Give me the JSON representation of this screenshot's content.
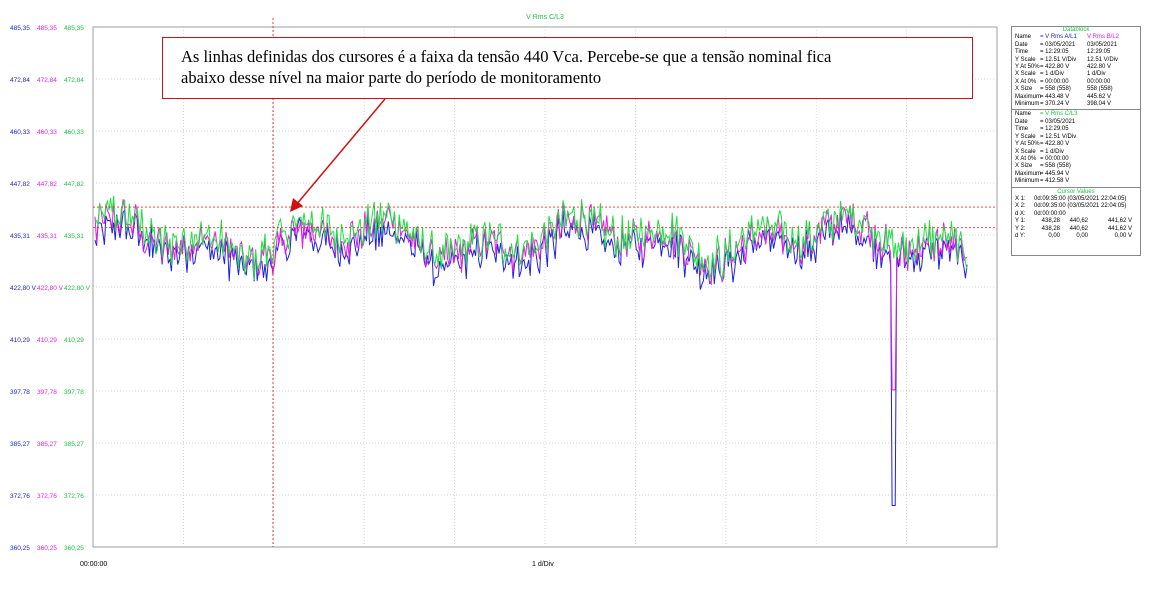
{
  "callout": {
    "line1": "As linhas definidas dos cursores é a faixa da tensão 440 Vca. Percebe-se que a tensão nominal fica",
    "line2": "abaixo desse nível na maior parte do período de monitoramento"
  },
  "chart_data": {
    "type": "line",
    "title": "V Rms C/L3",
    "ylim": [
      360.25,
      485.35
    ],
    "y_ticks": [
      "485,35",
      "472,84",
      "460,33",
      "447,82",
      "435,31",
      "422,80 V",
      "410,29",
      "397,78",
      "385,27",
      "372,76",
      "360,25"
    ],
    "y_ticks_col2": [
      "485,35",
      "472,84",
      "460,33",
      "447,82",
      "435,31",
      "422,80 V",
      "410,29",
      "397,78",
      "385,27",
      "372,76",
      "360,25"
    ],
    "y_ticks_col3": [
      "485,35",
      "472,84",
      "460,33",
      "447,82",
      "435,31",
      "422,80 V",
      "410,29",
      "397,78",
      "385,27",
      "372,76",
      "360,25"
    ],
    "x_tick_start": "00:00:00",
    "x_scale_label": "1 d/Div",
    "series": [
      {
        "name": "V Rms A/L1",
        "color": "#2020e0",
        "min": 370.24,
        "max": 443.48
      },
      {
        "name": "V Rms B/L2",
        "color": "#e020e0",
        "min": 398.04,
        "max": 445.62
      },
      {
        "name": "V Rms C/L3",
        "color": "#20e040",
        "min": 412.58,
        "max": 445.94
      }
    ],
    "cursor_top": 440.62,
    "cursor_bottom": 438.28,
    "grid": true
  },
  "datablock": {
    "title": "Datablock",
    "rows": [
      [
        "Name",
        "= V Rms A/L1",
        "V Rms B/L2"
      ],
      [
        "Date",
        "= 03/05/2021",
        "03/05/2021"
      ],
      [
        "Time",
        "= 12:29:05",
        "12:29:05"
      ],
      [
        "Y Scale",
        "= 12.51 V/Div",
        "12.51 V/Div"
      ],
      [
        "Y At 50%",
        "= 422.80 V",
        "422.80 V"
      ],
      [
        "X Scale",
        "= 1   d/Div",
        "1   d/Div"
      ],
      [
        "X At 0%",
        "= 00:00:00",
        "00:00:00"
      ],
      [
        "X Size",
        "= 558 (558)",
        "558 (558)"
      ],
      [
        "Maximum",
        "= 443.48 V",
        "445.62 V"
      ],
      [
        "Minimum",
        "= 370.24 V",
        "398.04 V"
      ]
    ],
    "rows2": [
      [
        "Name",
        "= V Rms C/L3"
      ],
      [
        "Date",
        "= 03/05/2021"
      ],
      [
        "Time",
        "= 12:29:05"
      ],
      [
        "Y Scale",
        "= 12.51 V/Div"
      ],
      [
        "Y At 50%",
        "= 422.80 V"
      ],
      [
        "X Scale",
        "= 1   d/Div"
      ],
      [
        "X At 0%",
        "= 00:00:00"
      ],
      [
        "X Size",
        "= 558 (558)"
      ],
      [
        "Maximum",
        "= 445.94 V"
      ],
      [
        "Minimum",
        "= 412.58 V"
      ]
    ]
  },
  "cursor_values": {
    "title": "Cursor Values",
    "x1": [
      "X 1:",
      "0d:09:35:00 (03/05/2021 22:04:05)"
    ],
    "x2": [
      "X 2:",
      "0d:09:35:00 (03/05/2021 22:04:05)"
    ],
    "dx": [
      "d X:",
      "0d:00:00:00"
    ],
    "y1": [
      "Y 1:",
      "438,28",
      "440,62",
      "441,62 V"
    ],
    "y2": [
      "Y 2:",
      "438,28",
      "440,62",
      "441,62 V"
    ],
    "dy": [
      "d Y:",
      "0,00",
      "0,00",
      "0,00 V"
    ]
  }
}
